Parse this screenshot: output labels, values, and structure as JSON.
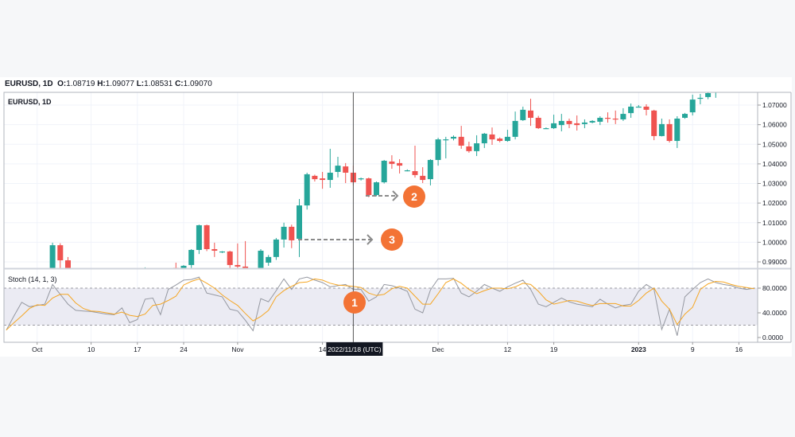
{
  "header": {
    "symbol": "EURUSD, 1D",
    "o_label": "O:",
    "o": "1.08719",
    "h_label": "H:",
    "h": "1.09077",
    "l_label": "L:",
    "l": "1.08531",
    "c_label": "C:",
    "c": "1.09070"
  },
  "colors": {
    "up": "#26a69a",
    "down": "#ef5350",
    "k_line": "#9598a1",
    "d_line": "#f5a623",
    "marker": "#f37335",
    "band": "#ebebf3"
  },
  "chart_data": [
    {
      "type": "candlestick",
      "title": "EURUSD, 1D",
      "ylim": [
        0.9868,
        1.0765
      ],
      "y_ticks": [
        "1.07000",
        "1.06000",
        "1.05000",
        "1.04000",
        "1.03000",
        "1.02000",
        "1.01000",
        "1.00000",
        "0.99000"
      ],
      "grid": true,
      "columns": [
        "date",
        "open",
        "high",
        "low",
        "close"
      ],
      "candles": [
        [
          "2022-10-04",
          0.982,
          0.9998,
          0.981,
          0.9985
        ],
        [
          "2022-10-05",
          0.9985,
          0.9995,
          0.985,
          0.9908
        ],
        [
          "2022-10-06",
          0.9908,
          0.9925,
          0.98,
          0.985
        ],
        [
          "2022-10-18",
          0.9868,
          0.9872,
          0.985,
          0.9868
        ],
        [
          "2022-10-23",
          0.987,
          0.9896,
          0.9855,
          0.9862
        ],
        [
          "2022-10-24",
          0.986,
          0.9884,
          0.985,
          0.988
        ],
        [
          "2022-10-25",
          0.9884,
          0.9965,
          0.9868,
          0.9961
        ],
        [
          "2022-10-26",
          0.9961,
          1.009,
          0.994,
          1.0087
        ],
        [
          "2022-10-27",
          1.0087,
          1.009,
          0.9955,
          0.9965
        ],
        [
          "2022-10-28",
          0.9965,
          0.9998,
          0.9925,
          0.9957
        ],
        [
          "2022-10-30",
          0.9949,
          0.9955,
          0.9945,
          0.9953
        ],
        [
          "2022-10-31",
          0.9953,
          0.9957,
          0.986,
          0.9884
        ],
        [
          "2022-11-01",
          0.9884,
          0.9994,
          0.986,
          0.9876
        ],
        [
          "2022-11-02",
          0.9876,
          1.0006,
          0.985,
          0.9868
        ],
        [
          "2022-11-04",
          0.985,
          0.9965,
          0.984,
          0.9957
        ],
        [
          "2022-11-06",
          0.9896,
          0.9935,
          0.988,
          0.9925
        ],
        [
          "2022-11-07",
          0.9925,
          1.0022,
          0.991,
          1.0014
        ],
        [
          "2022-11-08",
          1.0014,
          1.01,
          0.9973,
          1.0079
        ],
        [
          "2022-11-09",
          1.0079,
          1.009,
          0.997,
          1.001
        ],
        [
          "2022-11-10",
          1.0018,
          1.0221,
          0.9925,
          1.0188
        ],
        [
          "2022-11-11",
          1.0188,
          1.0355,
          1.0167,
          1.0347
        ],
        [
          "2022-11-13",
          1.0339,
          1.0345,
          1.031,
          1.0322
        ],
        [
          "2022-11-14",
          1.0326,
          1.0359,
          1.0273,
          1.0318
        ],
        [
          "2022-11-15",
          1.0318,
          1.0477,
          1.0278,
          1.0355
        ],
        [
          "2022-11-16",
          1.0359,
          1.0436,
          1.0331,
          1.0391
        ],
        [
          "2022-11-17",
          1.0387,
          1.0404,
          1.0302,
          1.0355
        ],
        [
          "2022-11-18",
          1.0355,
          1.0391,
          1.029,
          1.0306
        ],
        [
          "2022-11-20",
          1.0322,
          1.033,
          1.0315,
          1.0326
        ],
        [
          "2022-11-21",
          1.0326,
          1.033,
          1.023,
          1.0241
        ],
        [
          "2022-11-22",
          1.0241,
          1.031,
          1.0235,
          1.0306
        ],
        [
          "2022-11-23",
          1.0306,
          1.042,
          1.03,
          1.0416
        ],
        [
          "2022-11-24",
          1.0412,
          1.0444,
          1.0375,
          1.04
        ],
        [
          "2022-11-25",
          1.0404,
          1.0424,
          1.0351,
          1.0391
        ],
        [
          "2022-11-27",
          1.0367,
          1.0372,
          1.0362,
          1.0367
        ],
        [
          "2022-11-28",
          1.0363,
          1.0493,
          1.033,
          1.0343
        ],
        [
          "2022-11-29",
          1.0339,
          1.0383,
          1.0302,
          1.0318
        ],
        [
          "2022-11-30",
          1.0322,
          1.0424,
          1.029,
          1.042
        ],
        [
          "2022-12-01",
          1.042,
          1.0533,
          1.0391,
          1.0525
        ],
        [
          "2022-12-02",
          1.0521,
          1.0538,
          1.0428,
          1.0525
        ],
        [
          "2022-12-04",
          1.0529,
          1.0545,
          1.052,
          1.0538
        ],
        [
          "2022-12-05",
          1.0538,
          1.0594,
          1.0477,
          1.0493
        ],
        [
          "2022-12-06",
          1.0489,
          1.0513,
          1.0457,
          1.0465
        ],
        [
          "2022-12-07",
          1.0465,
          1.0546,
          1.044,
          1.0505
        ],
        [
          "2022-12-08",
          1.0505,
          1.0558,
          1.0481,
          1.0554
        ],
        [
          "2022-12-09",
          1.055,
          1.0586,
          1.0497,
          1.0525
        ],
        [
          "2022-12-11",
          1.0529,
          1.0535,
          1.051,
          1.0517
        ],
        [
          "2022-12-12",
          1.0517,
          1.0574,
          1.0513,
          1.0538
        ],
        [
          "2022-12-13",
          1.0538,
          1.0667,
          1.0525,
          1.0619
        ],
        [
          "2022-12-14",
          1.0623,
          1.0692,
          1.0619,
          1.0676
        ],
        [
          "2022-12-15",
          1.0672,
          1.0732,
          1.0594,
          1.0635
        ],
        [
          "2022-12-16",
          1.0635,
          1.0645,
          1.0578,
          1.0582
        ],
        [
          "2022-12-18",
          1.0582,
          1.0586,
          1.0578,
          1.0582
        ],
        [
          "2022-12-19",
          1.0582,
          1.0651,
          1.0578,
          1.0607
        ],
        [
          "2022-12-20",
          1.0598,
          1.0655,
          1.0566,
          1.0619
        ],
        [
          "2022-12-21",
          1.0619,
          1.0631,
          1.0582,
          1.0603
        ],
        [
          "2022-12-22",
          1.0607,
          1.0647,
          1.057,
          1.0598
        ],
        [
          "2022-12-23",
          1.0603,
          1.0627,
          1.0582,
          1.0611
        ],
        [
          "2022-12-25",
          1.0611,
          1.0623,
          1.0607,
          1.0619
        ],
        [
          "2022-12-26",
          1.0615,
          1.0643,
          1.0598,
          1.0635
        ],
        [
          "2022-12-27",
          1.0635,
          1.0663,
          1.061,
          1.0631
        ],
        [
          "2022-12-28",
          1.0631,
          1.0672,
          1.0603,
          1.0627
        ],
        [
          "2022-12-29",
          1.0627,
          1.0684,
          1.0619,
          1.0655
        ],
        [
          "2022-12-30",
          1.0659,
          1.0708,
          1.0635,
          1.0692
        ],
        [
          "2023-01-01",
          1.0692,
          1.07,
          1.0688,
          1.0692
        ],
        [
          "2023-01-02",
          1.0692,
          1.0704,
          1.0647,
          1.0676
        ],
        [
          "2023-01-03",
          1.0672,
          1.0676,
          1.0521,
          1.0542
        ],
        [
          "2023-01-04",
          1.0542,
          1.0631,
          1.054,
          1.0603
        ],
        [
          "2023-01-05",
          1.0603,
          1.0627,
          1.0509,
          1.0517
        ],
        [
          "2023-01-06",
          1.0517,
          1.0643,
          1.0481,
          1.0631
        ],
        [
          "2023-01-08",
          1.0635,
          1.066,
          1.063,
          1.0655
        ],
        [
          "2023-01-09",
          1.0663,
          1.0753,
          1.0647,
          1.0728
        ],
        [
          "2023-01-10",
          1.0732,
          1.0757,
          1.0704,
          1.0737
        ],
        [
          "2023-01-11",
          1.0741,
          1.078,
          1.073,
          1.0761
        ],
        [
          "2023-01-12",
          1.0765,
          1.08,
          1.0737,
          1.077
        ]
      ]
    },
    {
      "type": "line",
      "title": "Stoch (14, 1, 3)",
      "ylim": [
        0,
        100
      ],
      "y_ticks": [
        "80.0000",
        "40.0000",
        "0.0000"
      ],
      "bands": [
        20,
        80
      ],
      "dates": [
        "2022-09-27",
        "2022-09-28",
        "2022-09-29",
        "2022-09-30",
        "2022-10-02",
        "2022-10-03",
        "2022-10-04",
        "2022-10-05",
        "2022-10-06",
        "2022-10-07",
        "2022-10-09",
        "2022-10-10",
        "2022-10-11",
        "2022-10-12",
        "2022-10-13",
        "2022-10-14",
        "2022-10-16",
        "2022-10-17",
        "2022-10-18",
        "2022-10-19",
        "2022-10-20",
        "2022-10-21",
        "2022-10-23",
        "2022-10-24",
        "2022-10-25",
        "2022-10-26",
        "2022-10-27",
        "2022-10-28",
        "2022-10-30",
        "2022-10-31",
        "2022-11-01",
        "2022-11-02",
        "2022-11-03",
        "2022-11-04",
        "2022-11-06",
        "2022-11-07",
        "2022-11-08",
        "2022-11-09",
        "2022-11-10",
        "2022-11-11",
        "2022-11-13",
        "2022-11-14",
        "2022-11-15",
        "2022-11-16",
        "2022-11-17",
        "2022-11-18",
        "2022-11-20",
        "2022-11-21",
        "2022-11-22",
        "2022-11-23",
        "2022-11-24",
        "2022-11-25",
        "2022-11-27",
        "2022-11-28",
        "2022-11-29",
        "2022-11-30",
        "2022-12-01",
        "2022-12-02",
        "2022-12-04",
        "2022-12-05",
        "2022-12-06",
        "2022-12-07",
        "2022-12-08",
        "2022-12-09",
        "2022-12-11",
        "2022-12-12",
        "2022-12-13",
        "2022-12-14",
        "2022-12-15",
        "2022-12-16",
        "2022-12-18",
        "2022-12-19",
        "2022-12-20",
        "2022-12-21",
        "2022-12-22",
        "2022-12-23",
        "2022-12-25",
        "2022-12-26",
        "2022-12-27",
        "2022-12-28",
        "2022-12-29",
        "2022-12-30",
        "2023-01-01",
        "2023-01-02",
        "2023-01-03",
        "2023-01-04",
        "2023-01-05",
        "2023-01-06",
        "2023-01-08",
        "2023-01-09",
        "2023-01-10",
        "2023-01-11",
        "2023-01-12",
        "2023-01-13",
        "2023-01-15",
        "2023-01-16",
        "2023-01-17",
        "2023-01-18"
      ],
      "series": [
        {
          "key": "k",
          "values": [
            12,
            35,
            57,
            50,
            52,
            54,
            86,
            70,
            54,
            44,
            43,
            42,
            40,
            38,
            37,
            48,
            24,
            29,
            62,
            64,
            37,
            78,
            85,
            93,
            94,
            98,
            72,
            69,
            66,
            46,
            43,
            28,
            11,
            63,
            58,
            76,
            95,
            78,
            95,
            98,
            93,
            89,
            82,
            84,
            86,
            78,
            78,
            59,
            66,
            86,
            84,
            80,
            75,
            46,
            40,
            77,
            95,
            95,
            96,
            72,
            66,
            75,
            86,
            80,
            75,
            82,
            88,
            93,
            78,
            54,
            50,
            57,
            64,
            58,
            54,
            52,
            50,
            62,
            54,
            48,
            52,
            54,
            75,
            86,
            78,
            13,
            46,
            3,
            66,
            78,
            89,
            95,
            89,
            86,
            84,
            80,
            78,
            80
          ]
        },
        {
          "key": "d",
          "values": [
            12,
            24,
            35,
            47,
            53,
            52,
            64,
            70,
            70,
            56,
            47,
            43,
            42,
            40,
            38,
            41,
            36,
            34,
            38,
            52,
            54,
            60,
            67,
            85,
            91,
            95,
            88,
            80,
            69,
            60,
            52,
            39,
            27,
            34,
            44,
            66,
            76,
            83,
            89,
            90,
            95,
            93,
            88,
            85,
            84,
            83,
            81,
            72,
            68,
            70,
            79,
            83,
            80,
            67,
            54,
            54,
            71,
            89,
            95,
            88,
            78,
            71,
            76,
            80,
            80,
            79,
            82,
            88,
            86,
            75,
            61,
            54,
            57,
            60,
            59,
            55,
            52,
            55,
            55,
            55,
            51,
            51,
            60,
            72,
            80,
            59,
            46,
            21,
            38,
            49,
            78,
            87,
            91,
            90,
            86,
            83,
            81,
            79
          ]
        }
      ]
    }
  ],
  "time_axis": {
    "ticks": [
      {
        "label": "Oct",
        "date": "2022-10-02"
      },
      {
        "label": "10",
        "date": "2022-10-10"
      },
      {
        "label": "17",
        "date": "2022-10-17"
      },
      {
        "label": "24",
        "date": "2022-10-24"
      },
      {
        "label": "Nov",
        "date": "2022-11-01"
      },
      {
        "label": "14",
        "date": "2022-11-14"
      },
      {
        "label": "Dec",
        "date": "2022-12-01"
      },
      {
        "label": "12",
        "date": "2022-12-12"
      },
      {
        "label": "19",
        "date": "2022-12-19"
      },
      {
        "label": "2023",
        "date": "2023-01-01"
      },
      {
        "label": "9",
        "date": "2023-01-09"
      },
      {
        "label": "16",
        "date": "2023-01-16"
      }
    ],
    "crosshair_date": "2022-11-18",
    "crosshair_label": "2022/11/18 (UTC)"
  },
  "annotations": [
    {
      "label": "1"
    },
    {
      "label": "2"
    },
    {
      "label": "3"
    }
  ]
}
